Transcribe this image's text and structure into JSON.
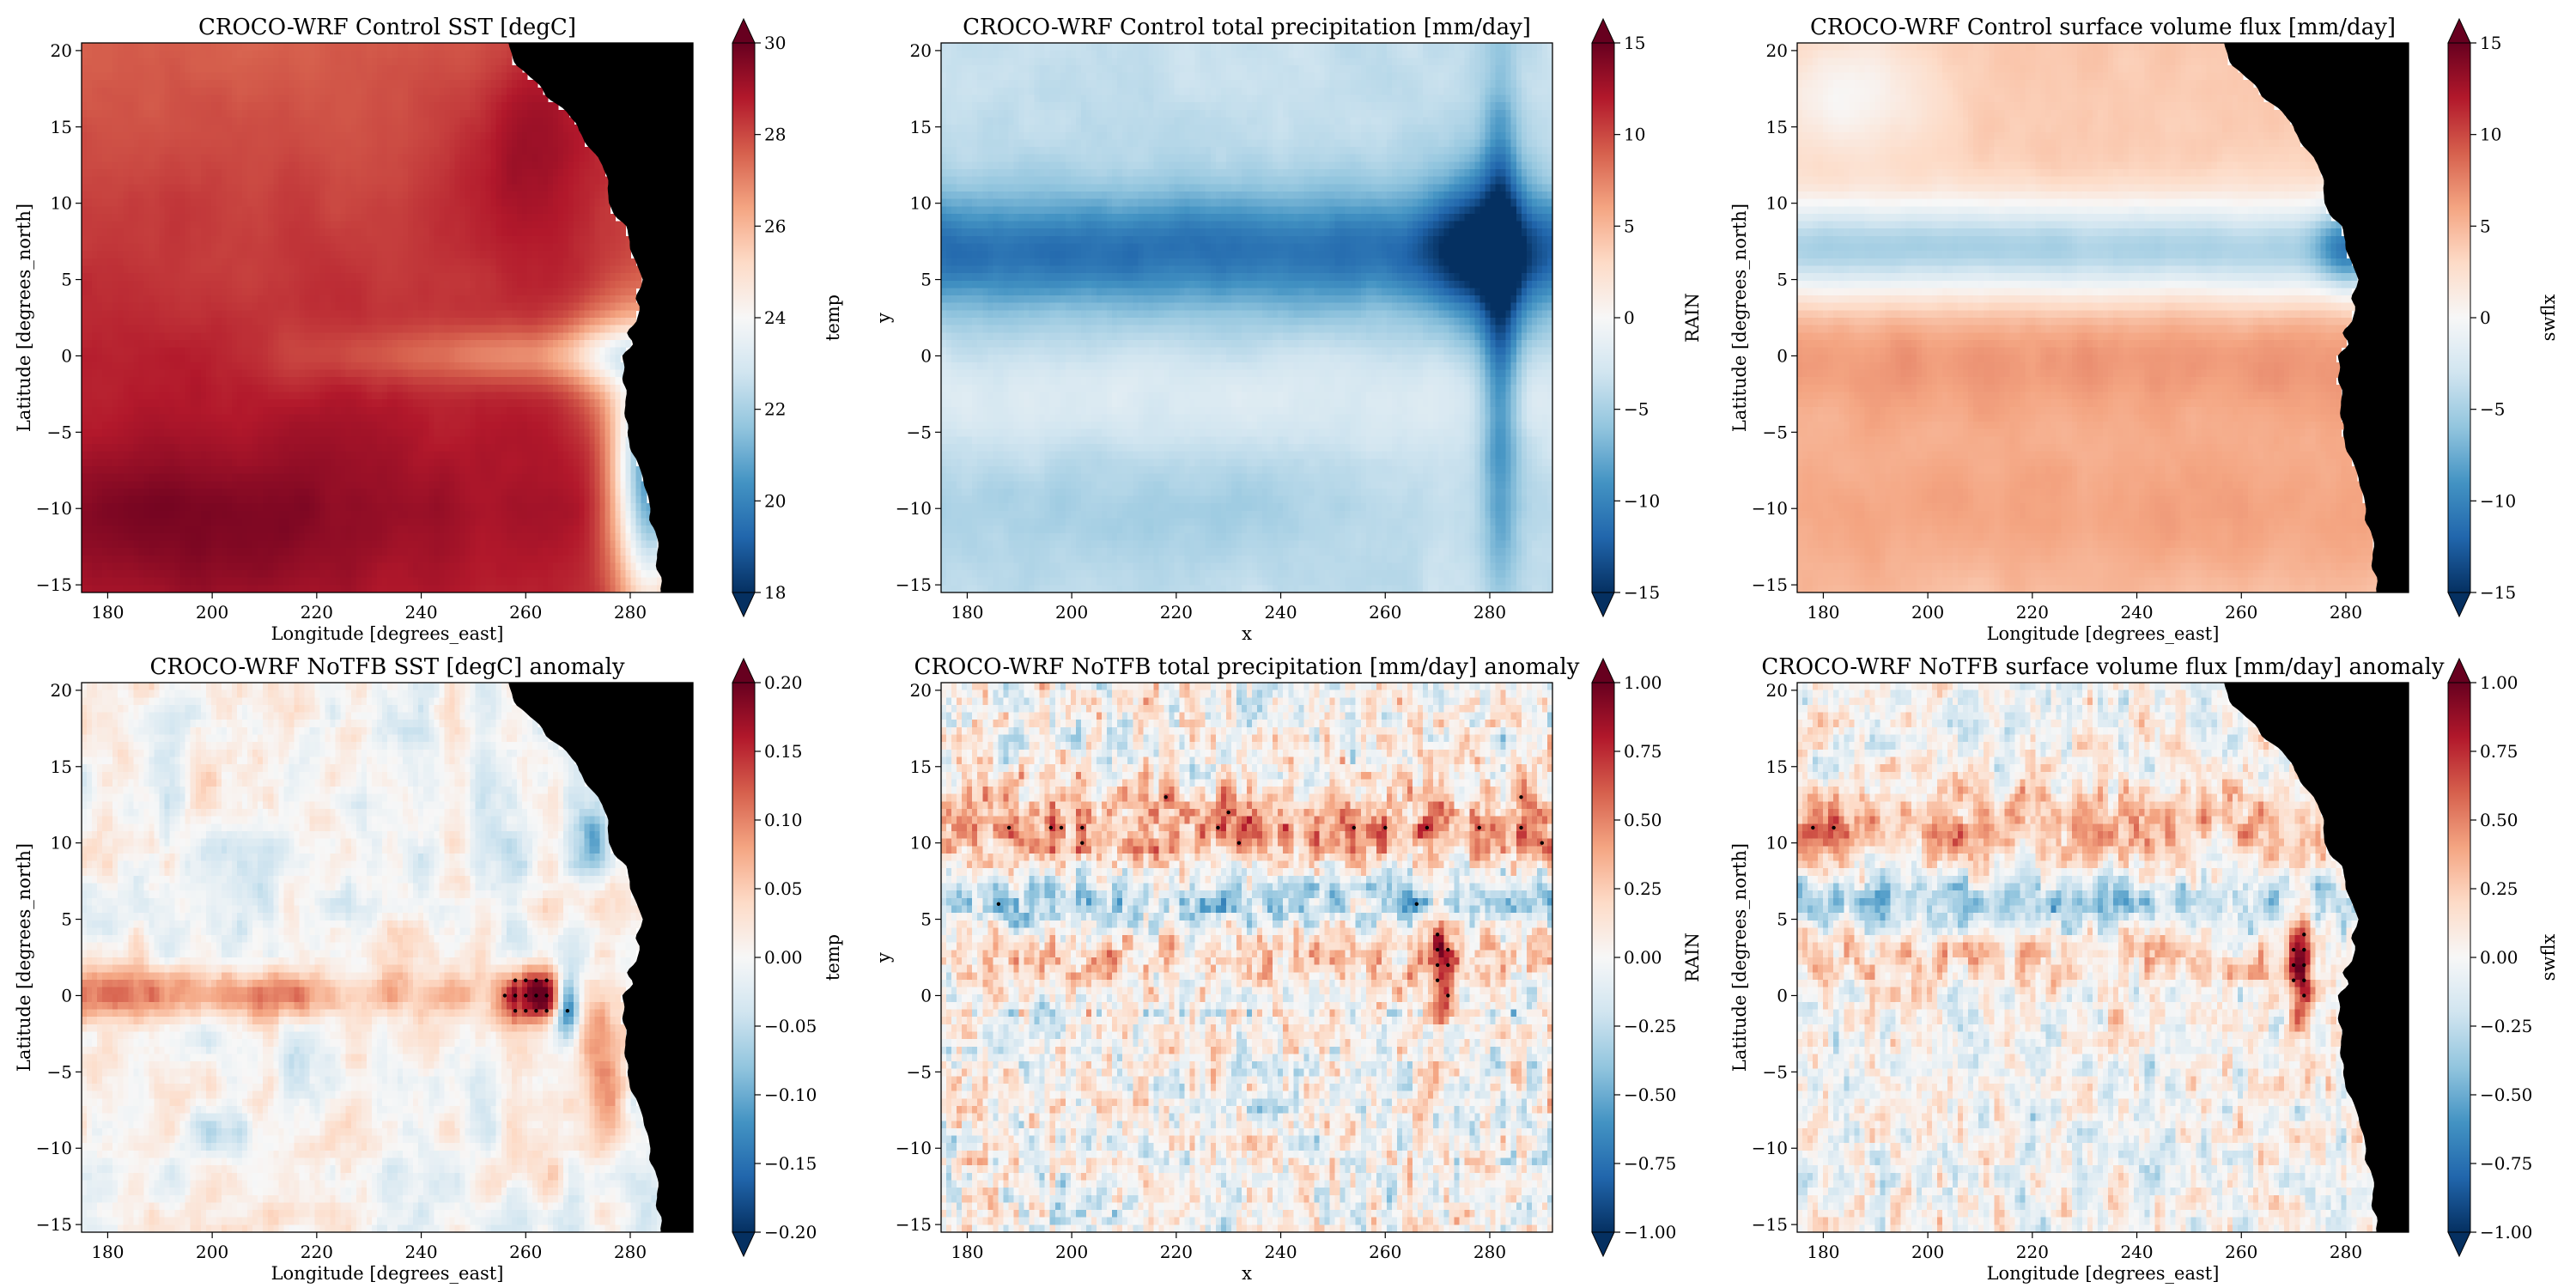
{
  "chart_data": [
    {
      "type": "heatmap",
      "title": "CROCO-WRF Control SST [degC]",
      "xlabel": "Longitude [degrees_east]",
      "ylabel": "Latitude [degrees_north]",
      "xlim": [
        175,
        292
      ],
      "ylim": [
        -15.5,
        20.5
      ],
      "xticks": [
        180,
        200,
        220,
        240,
        260,
        280
      ],
      "yticks": [
        -15,
        -10,
        -5,
        0,
        5,
        10,
        15,
        20
      ],
      "xtick_labels": [
        "180",
        "200",
        "220",
        "240",
        "260",
        "280"
      ],
      "ytick_labels": [
        "−15",
        "−10",
        "−5",
        "0",
        "5",
        "10",
        "15",
        "20"
      ],
      "colorbar": {
        "label": "temp",
        "colormap": "RdBu_r",
        "vmin": 18,
        "vmax": 30,
        "extend": "both",
        "ticks": [
          18,
          20,
          22,
          24,
          26,
          28,
          30
        ],
        "tick_labels": [
          "18",
          "20",
          "22",
          "24",
          "26",
          "28",
          "30"
        ]
      },
      "land_mask": true,
      "field": "sst_control"
    },
    {
      "type": "heatmap",
      "title": "CROCO-WRF Control total precipitation [mm/day]",
      "xlabel": "x",
      "ylabel": "y",
      "xlim": [
        175,
        292
      ],
      "ylim": [
        -15.5,
        20.5
      ],
      "xticks": [
        180,
        200,
        220,
        240,
        260,
        280
      ],
      "yticks": [
        -15,
        -10,
        -5,
        0,
        5,
        10,
        15,
        20
      ],
      "xtick_labels": [
        "180",
        "200",
        "220",
        "240",
        "260",
        "280"
      ],
      "ytick_labels": [
        "−15",
        "−10",
        "−5",
        "0",
        "5",
        "10",
        "15",
        "20"
      ],
      "colorbar": {
        "label": "RAIN",
        "colormap": "RdBu_r",
        "vmin": -15,
        "vmax": 15,
        "extend": "both",
        "ticks": [
          -15,
          -10,
          -5,
          0,
          5,
          10,
          15
        ],
        "tick_labels": [
          "−15",
          "−10",
          "−5",
          "0",
          "5",
          "10",
          "15"
        ]
      },
      "land_mask": false,
      "field": "rain_control"
    },
    {
      "type": "heatmap",
      "title": "CROCO-WRF Control surface volume flux [mm/day]",
      "xlabel": "Longitude [degrees_east]",
      "ylabel": "Latitude [degrees_north]",
      "xlim": [
        175,
        292
      ],
      "ylim": [
        -15.5,
        20.5
      ],
      "xticks": [
        180,
        200,
        220,
        240,
        260,
        280
      ],
      "yticks": [
        -15,
        -10,
        -5,
        0,
        5,
        10,
        15,
        20
      ],
      "xtick_labels": [
        "180",
        "200",
        "220",
        "240",
        "260",
        "280"
      ],
      "ytick_labels": [
        "−15",
        "−10",
        "−5",
        "0",
        "5",
        "10",
        "15",
        "20"
      ],
      "colorbar": {
        "label": "swflx",
        "colormap": "RdBu_r",
        "vmin": -15,
        "vmax": 15,
        "extend": "both",
        "ticks": [
          -15,
          -10,
          -5,
          0,
          5,
          10,
          15
        ],
        "tick_labels": [
          "−15",
          "−10",
          "−5",
          "0",
          "5",
          "10",
          "15"
        ]
      },
      "land_mask": true,
      "field": "swflx_control"
    },
    {
      "type": "heatmap",
      "title": "CROCO-WRF NoTFB SST [degC] anomaly",
      "xlabel": "Longitude [degrees_east]",
      "ylabel": "Latitude [degrees_north]",
      "xlim": [
        175,
        292
      ],
      "ylim": [
        -15.5,
        20.5
      ],
      "xticks": [
        180,
        200,
        220,
        240,
        260,
        280
      ],
      "yticks": [
        -15,
        -10,
        -5,
        0,
        5,
        10,
        15,
        20
      ],
      "xtick_labels": [
        "180",
        "200",
        "220",
        "240",
        "260",
        "280"
      ],
      "ytick_labels": [
        "−15",
        "−10",
        "−5",
        "0",
        "5",
        "10",
        "15",
        "20"
      ],
      "colorbar": {
        "label": "temp",
        "colormap": "RdBu_r",
        "vmin": -0.2,
        "vmax": 0.2,
        "extend": "both",
        "ticks": [
          -0.2,
          -0.15,
          -0.1,
          -0.05,
          0,
          0.05,
          0.1,
          0.15,
          0.2
        ],
        "tick_labels": [
          "−0.20",
          "−0.15",
          "−0.10",
          "−0.05",
          "0.00",
          "0.05",
          "0.10",
          "0.15",
          "0.20"
        ]
      },
      "land_mask": true,
      "field": "sst_anomaly",
      "stippling": true
    },
    {
      "type": "heatmap",
      "title": "CROCO-WRF NoTFB total precipitation [mm/day] anomaly",
      "xlabel": "x",
      "ylabel": "y",
      "xlim": [
        175,
        292
      ],
      "ylim": [
        -15.5,
        20.5
      ],
      "xticks": [
        180,
        200,
        220,
        240,
        260,
        280
      ],
      "yticks": [
        -15,
        -10,
        -5,
        0,
        5,
        10,
        15,
        20
      ],
      "xtick_labels": [
        "180",
        "200",
        "220",
        "240",
        "260",
        "280"
      ],
      "ytick_labels": [
        "−15",
        "−10",
        "−5",
        "0",
        "5",
        "10",
        "15",
        "20"
      ],
      "colorbar": {
        "label": "RAIN",
        "colormap": "RdBu_r",
        "vmin": -1,
        "vmax": 1,
        "extend": "both",
        "ticks": [
          -1,
          -0.75,
          -0.5,
          -0.25,
          0,
          0.25,
          0.5,
          0.75,
          1
        ],
        "tick_labels": [
          "−1.00",
          "−0.75",
          "−0.50",
          "−0.25",
          "0.00",
          "0.25",
          "0.50",
          "0.75",
          "1.00"
        ]
      },
      "land_mask": false,
      "field": "rain_anomaly",
      "stippling": true
    },
    {
      "type": "heatmap",
      "title": "CROCO-WRF NoTFB surface volume flux [mm/day] anomaly",
      "xlabel": "Longitude [degrees_east]",
      "ylabel": "Latitude [degrees_north]",
      "xlim": [
        175,
        292
      ],
      "ylim": [
        -15.5,
        20.5
      ],
      "xticks": [
        180,
        200,
        220,
        240,
        260,
        280
      ],
      "yticks": [
        -15,
        -10,
        -5,
        0,
        5,
        10,
        15,
        20
      ],
      "xtick_labels": [
        "180",
        "200",
        "220",
        "240",
        "260",
        "280"
      ],
      "ytick_labels": [
        "−15",
        "−10",
        "−5",
        "0",
        "5",
        "10",
        "15",
        "20"
      ],
      "colorbar": {
        "label": "swflx",
        "colormap": "RdBu_r",
        "vmin": -1,
        "vmax": 1,
        "extend": "both",
        "ticks": [
          -1,
          -0.75,
          -0.5,
          -0.25,
          0,
          0.25,
          0.5,
          0.75,
          1
        ],
        "tick_labels": [
          "−1.00",
          "−0.75",
          "−0.50",
          "−0.25",
          "0.00",
          "0.25",
          "0.50",
          "0.75",
          "1.00"
        ]
      },
      "land_mask": true,
      "field": "swflx_anomaly",
      "stippling": true
    }
  ]
}
